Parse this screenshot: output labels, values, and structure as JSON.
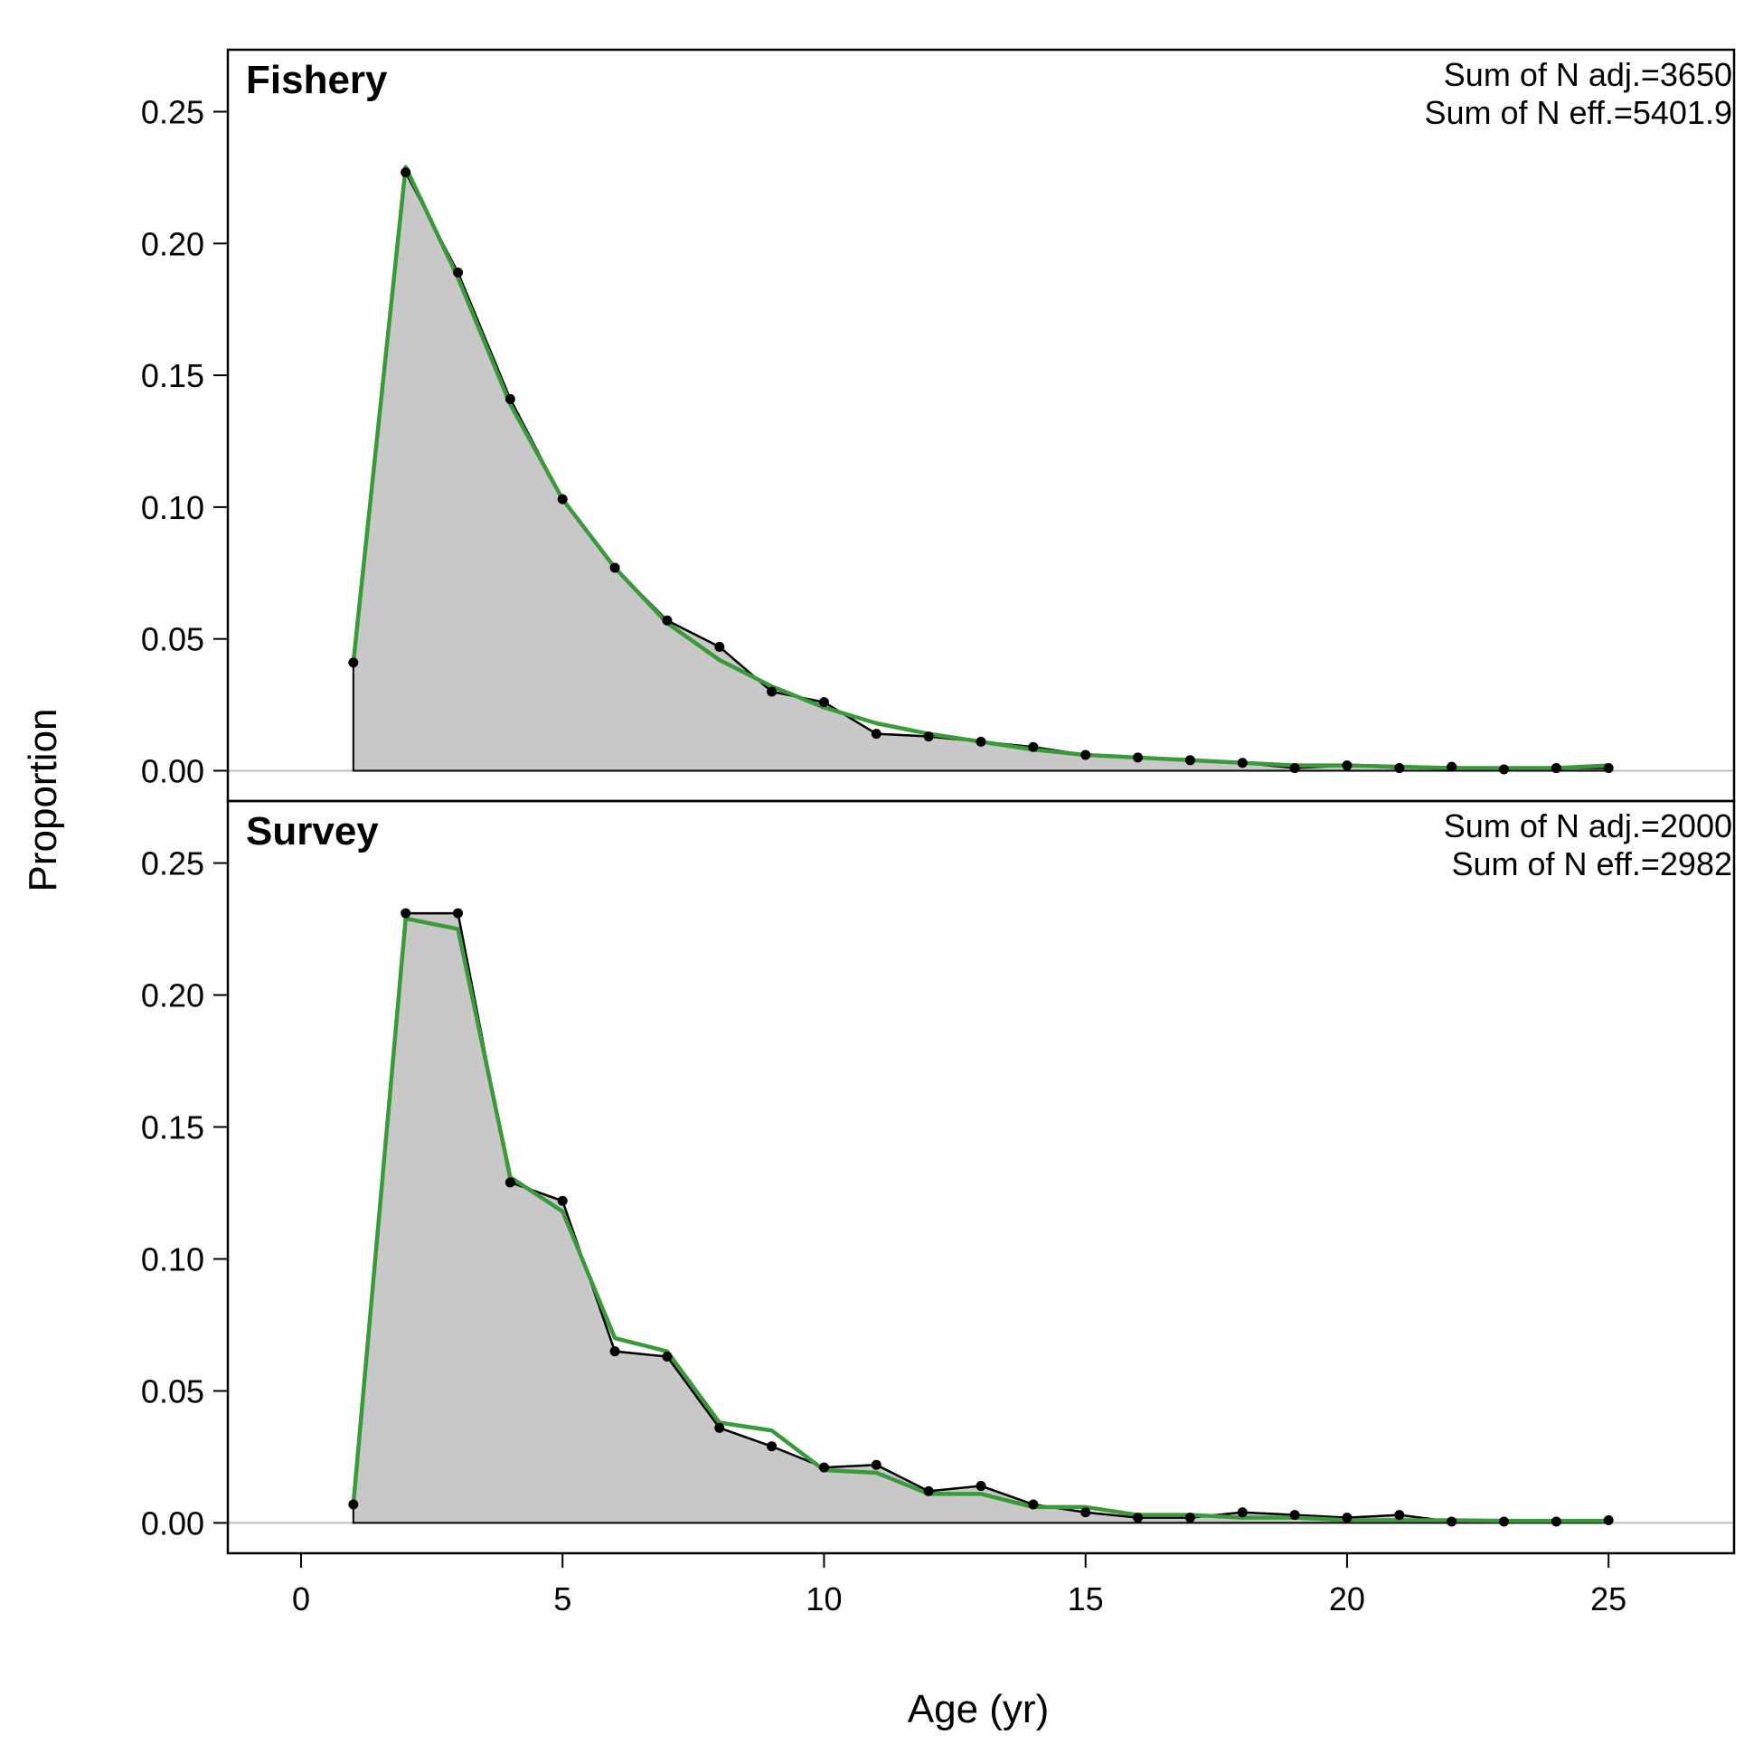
{
  "chart_data": {
    "type": "area",
    "xlabel": "Age (yr)",
    "ylabel": "Proportion",
    "xlim": [
      -1.4,
      27.4
    ],
    "ylim": [
      -0.0115,
      0.2735
    ],
    "x_ticks": [
      "0",
      "5",
      "10",
      "15",
      "20",
      "25"
    ],
    "x_tick_values": [
      0,
      5,
      10,
      15,
      20,
      25
    ],
    "y_ticks": [
      "0.00",
      "0.05",
      "0.10",
      "0.15",
      "0.20",
      "0.25"
    ],
    "y_tick_values": [
      0,
      0.05,
      0.1,
      0.15,
      0.2,
      0.25
    ],
    "colors": {
      "observed_fill": "#c8c8c8",
      "observed_line": "#000000",
      "expected_line": "#3a9a3a",
      "zero_line": "#bdbdbd"
    },
    "panels": [
      {
        "title": "Fishery",
        "note_lines": [
          "Sum of N adj.=3650",
          "Sum of N eff.=5401.9"
        ],
        "x": [
          1,
          2,
          3,
          4,
          5,
          6,
          7,
          8,
          9,
          10,
          11,
          12,
          13,
          14,
          15,
          16,
          17,
          18,
          19,
          20,
          21,
          22,
          23,
          24,
          25
        ],
        "observed": [
          0.041,
          0.227,
          0.189,
          0.141,
          0.103,
          0.077,
          0.057,
          0.047,
          0.03,
          0.026,
          0.014,
          0.013,
          0.011,
          0.009,
          0.006,
          0.005,
          0.004,
          0.003,
          0.001,
          0.002,
          0.001,
          0.0015,
          0.0005,
          0.001,
          0.001
        ],
        "expected": [
          0.041,
          0.229,
          0.187,
          0.139,
          0.103,
          0.077,
          0.056,
          0.042,
          0.032,
          0.024,
          0.018,
          0.014,
          0.011,
          0.008,
          0.006,
          0.005,
          0.004,
          0.003,
          0.002,
          0.002,
          0.0015,
          0.001,
          0.001,
          0.001,
          0.002
        ]
      },
      {
        "title": "Survey",
        "note_lines": [
          "Sum of N adj.=2000",
          "Sum of N eff.=2982"
        ],
        "x": [
          1,
          2,
          3,
          4,
          5,
          6,
          7,
          8,
          9,
          10,
          11,
          12,
          13,
          14,
          15,
          16,
          17,
          18,
          19,
          20,
          21,
          22,
          23,
          24,
          25
        ],
        "observed": [
          0.007,
          0.231,
          0.231,
          0.129,
          0.122,
          0.065,
          0.063,
          0.036,
          0.029,
          0.021,
          0.022,
          0.012,
          0.014,
          0.007,
          0.004,
          0.002,
          0.002,
          0.004,
          0.003,
          0.002,
          0.003,
          0.0005,
          0.0005,
          0.0005,
          0.001
        ],
        "expected": [
          0.007,
          0.229,
          0.225,
          0.131,
          0.118,
          0.07,
          0.065,
          0.038,
          0.035,
          0.02,
          0.019,
          0.011,
          0.011,
          0.006,
          0.006,
          0.003,
          0.003,
          0.002,
          0.002,
          0.001,
          0.001,
          0.001,
          0.0008,
          0.0008,
          0.0008
        ]
      }
    ]
  }
}
